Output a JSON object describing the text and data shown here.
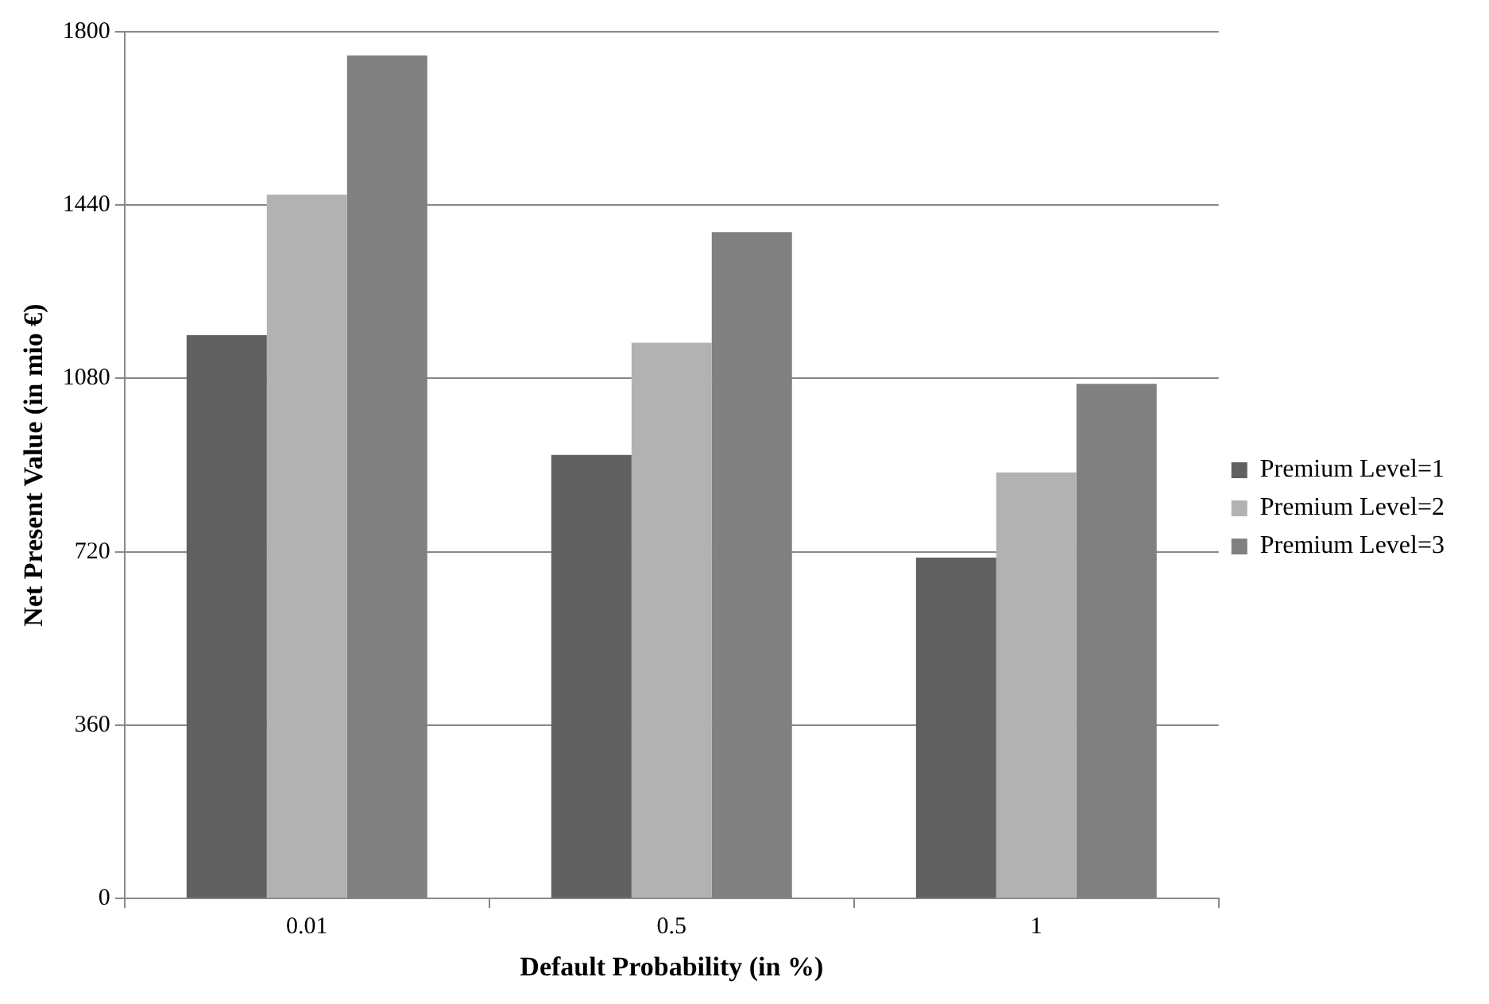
{
  "chart_data": {
    "type": "bar",
    "xlabel": "Default Probability (in %)",
    "ylabel": "Net Present Value (in mio €)",
    "categories": [
      "0.01",
      "0.5",
      "1"
    ],
    "series": [
      {
        "name": "Premium Level=1",
        "color": "#606060",
        "values": [
          1170,
          921,
          708
        ]
      },
      {
        "name": "Premium Level=2",
        "color": "#b2b2b2",
        "values": [
          1462,
          1154,
          885
        ]
      },
      {
        "name": "Premium Level=3",
        "color": "#808080",
        "values": [
          1751,
          1384,
          1069
        ]
      }
    ],
    "ylim": [
      0,
      1800
    ],
    "yticks": [
      0,
      360,
      720,
      1080,
      1440,
      1800
    ],
    "grid": "y",
    "legend": "right"
  }
}
